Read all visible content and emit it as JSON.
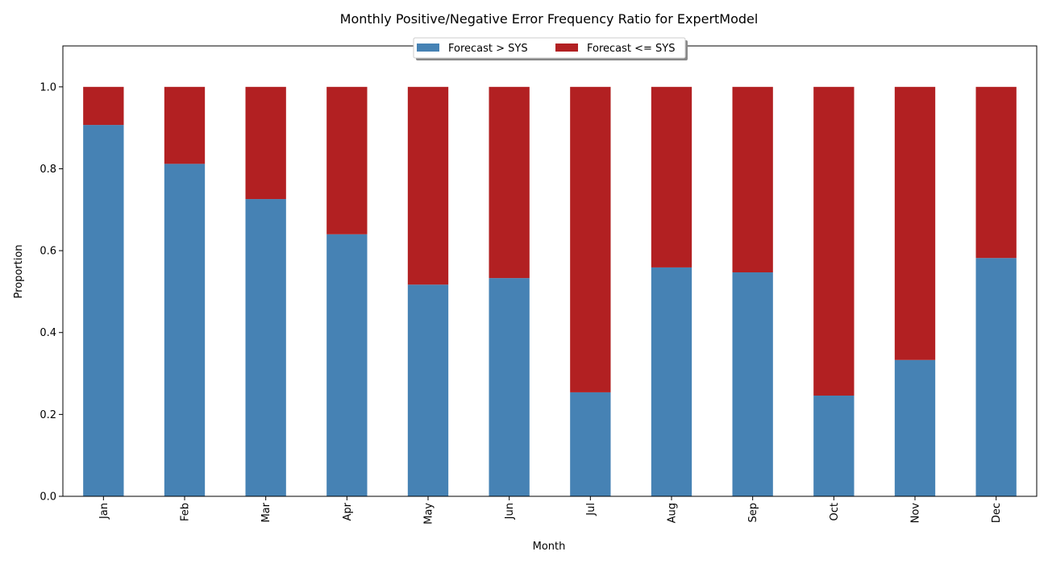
{
  "chart_data": {
    "type": "bar",
    "stacked": true,
    "title": "Monthly Positive/Negative Error Frequency Ratio for ExpertModel",
    "xlabel": "Month",
    "ylabel": "Proportion",
    "categories": [
      "Jan",
      "Feb",
      "Mar",
      "Apr",
      "May",
      "Jun",
      "Jul",
      "Aug",
      "Sep",
      "Oct",
      "Nov",
      "Dec"
    ],
    "series": [
      {
        "name": "Forecast > SYS",
        "color": "#4682b4",
        "values": [
          0.907,
          0.812,
          0.726,
          0.64,
          0.517,
          0.533,
          0.254,
          0.559,
          0.547,
          0.246,
          0.333,
          0.582
        ]
      },
      {
        "name": "Forecast <= SYS",
        "color": "#b22022",
        "values": [
          0.093,
          0.188,
          0.274,
          0.36,
          0.483,
          0.467,
          0.746,
          0.441,
          0.453,
          0.754,
          0.667,
          0.418
        ]
      }
    ],
    "ylim": [
      0,
      1.1
    ],
    "yticks": [
      "0.0",
      "0.2",
      "0.4",
      "0.6",
      "0.8",
      "1.0"
    ],
    "ytick_values": [
      0,
      0.2,
      0.4,
      0.6,
      0.8,
      1.0
    ],
    "xtick_rotation": "vertical",
    "legend_placement": "top-center",
    "grid": false
  }
}
